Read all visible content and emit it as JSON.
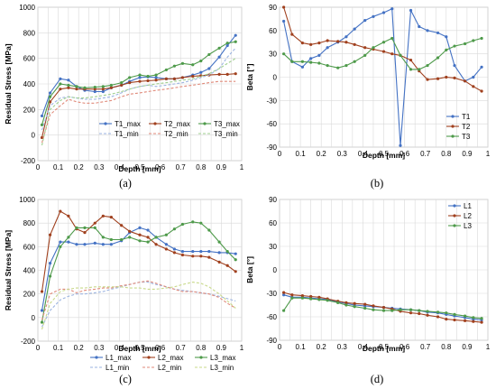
{
  "chart_data": [
    {
      "type": "line",
      "panel_caption": "(a)",
      "xlabel": "Depth [mm]",
      "ylabel": "Residual Stress [MPa]",
      "xlim": [
        0,
        1
      ],
      "ylim": [
        -200,
        1000
      ],
      "xticks": [
        "0",
        "0.1",
        "0.2",
        "0.3",
        "0.4",
        "0.5",
        "0.6",
        "0.7",
        "0.8",
        "0.9",
        "1"
      ],
      "yticks": [
        "-200",
        "0",
        "200",
        "400",
        "600",
        "800",
        "1000"
      ],
      "grid": true,
      "legend_position": "inside-bottom-right",
      "series": [
        {
          "name": "T1_max",
          "style": "solid",
          "color": "#4472c4",
          "x": [
            0.02,
            0.06,
            0.11,
            0.15,
            0.19,
            0.23,
            0.28,
            0.32,
            0.36,
            0.41,
            0.45,
            0.5,
            0.54,
            0.58,
            0.63,
            0.67,
            0.71,
            0.76,
            0.8,
            0.84,
            0.89,
            0.93,
            0.97
          ],
          "y": [
            150,
            330,
            440,
            430,
            380,
            350,
            340,
            340,
            370,
            390,
            420,
            450,
            455,
            450,
            440,
            440,
            450,
            470,
            490,
            520,
            610,
            700,
            780
          ]
        },
        {
          "name": "T2_max",
          "style": "solid",
          "color": "#a0401e",
          "x": [
            0.02,
            0.06,
            0.11,
            0.15,
            0.19,
            0.23,
            0.28,
            0.32,
            0.36,
            0.41,
            0.45,
            0.5,
            0.54,
            0.58,
            0.63,
            0.67,
            0.71,
            0.76,
            0.8,
            0.84,
            0.89,
            0.93,
            0.97
          ],
          "y": [
            -20,
            260,
            360,
            370,
            360,
            360,
            360,
            360,
            370,
            390,
            410,
            420,
            425,
            430,
            440,
            440,
            450,
            460,
            465,
            470,
            475,
            475,
            480
          ]
        },
        {
          "name": "T3_max",
          "style": "solid",
          "color": "#4e9a4a",
          "x": [
            0.02,
            0.06,
            0.11,
            0.15,
            0.19,
            0.23,
            0.28,
            0.32,
            0.36,
            0.41,
            0.45,
            0.5,
            0.54,
            0.58,
            0.63,
            0.67,
            0.71,
            0.76,
            0.8,
            0.84,
            0.89,
            0.93,
            0.97
          ],
          "y": [
            80,
            300,
            400,
            390,
            380,
            370,
            375,
            380,
            390,
            410,
            450,
            470,
            460,
            470,
            510,
            540,
            560,
            550,
            580,
            630,
            680,
            720,
            730
          ]
        },
        {
          "name": "T1_min",
          "style": "dashed",
          "color": "#9bb3e0",
          "x": [
            0.02,
            0.06,
            0.11,
            0.15,
            0.19,
            0.23,
            0.28,
            0.32,
            0.36,
            0.41,
            0.45,
            0.5,
            0.54,
            0.58,
            0.63,
            0.67,
            0.71,
            0.76,
            0.8,
            0.84,
            0.89,
            0.93,
            0.97
          ],
          "y": [
            40,
            230,
            290,
            300,
            290,
            280,
            280,
            290,
            300,
            330,
            360,
            380,
            390,
            380,
            390,
            400,
            410,
            430,
            450,
            470,
            520,
            610,
            680
          ]
        },
        {
          "name": "T2_min",
          "style": "dashed",
          "color": "#e08a7a",
          "x": [
            0.02,
            0.06,
            0.11,
            0.15,
            0.19,
            0.23,
            0.28,
            0.32,
            0.36,
            0.41,
            0.45,
            0.5,
            0.54,
            0.58,
            0.63,
            0.67,
            0.71,
            0.76,
            0.8,
            0.84,
            0.89,
            0.93,
            0.97
          ],
          "y": [
            -60,
            160,
            230,
            280,
            260,
            250,
            250,
            260,
            270,
            300,
            320,
            330,
            340,
            350,
            360,
            370,
            380,
            390,
            400,
            410,
            420,
            420,
            420
          ]
        },
        {
          "name": "T3_min",
          "style": "dashed",
          "color": "#9fcf8f",
          "x": [
            0.02,
            0.06,
            0.11,
            0.15,
            0.19,
            0.23,
            0.28,
            0.32,
            0.36,
            0.41,
            0.45,
            0.5,
            0.54,
            0.58,
            0.63,
            0.67,
            0.71,
            0.76,
            0.8,
            0.84,
            0.89,
            0.93,
            0.97
          ],
          "y": [
            -80,
            200,
            270,
            300,
            290,
            290,
            300,
            310,
            320,
            340,
            360,
            380,
            390,
            400,
            410,
            420,
            430,
            440,
            460,
            480,
            520,
            560,
            600
          ]
        }
      ]
    },
    {
      "type": "line",
      "panel_caption": "(b)",
      "xlabel": "Depth [mm]",
      "ylabel": "Beta [°]",
      "xlim": [
        0,
        1
      ],
      "ylim": [
        -90,
        90
      ],
      "xticks": [
        "0",
        "0.1",
        "0.2",
        "0.3",
        "0.4",
        "0.5",
        "0.6",
        "0.7",
        "0.8",
        "0.9",
        "1"
      ],
      "yticks": [
        "-90",
        "-60",
        "-30",
        "0",
        "30",
        "60",
        "90"
      ],
      "grid": true,
      "legend_position": "inside-bottom-right",
      "series": [
        {
          "name": "T1",
          "style": "solid",
          "color": "#4472c4",
          "x": [
            0.02,
            0.06,
            0.11,
            0.15,
            0.19,
            0.23,
            0.28,
            0.32,
            0.36,
            0.41,
            0.45,
            0.5,
            0.54,
            0.58,
            0.63,
            0.67,
            0.71,
            0.76,
            0.8,
            0.84,
            0.89,
            0.93,
            0.97
          ],
          "y": [
            72,
            20,
            13,
            24,
            28,
            38,
            45,
            52,
            62,
            73,
            78,
            83,
            88,
            -88,
            86,
            65,
            60,
            57,
            52,
            15,
            -5,
            0,
            13
          ]
        },
        {
          "name": "T2",
          "style": "solid",
          "color": "#a0401e",
          "x": [
            0.02,
            0.06,
            0.11,
            0.15,
            0.19,
            0.23,
            0.28,
            0.32,
            0.36,
            0.41,
            0.45,
            0.5,
            0.54,
            0.58,
            0.63,
            0.67,
            0.71,
            0.76,
            0.8,
            0.84,
            0.89,
            0.93,
            0.97
          ],
          "y": [
            90,
            55,
            44,
            42,
            44,
            47,
            46,
            45,
            42,
            38,
            36,
            33,
            30,
            28,
            22,
            8,
            -3,
            -2,
            0,
            -1,
            -5,
            -12,
            -18
          ]
        },
        {
          "name": "T3",
          "style": "solid",
          "color": "#4e9a4a",
          "x": [
            0.02,
            0.06,
            0.11,
            0.15,
            0.19,
            0.23,
            0.28,
            0.32,
            0.36,
            0.41,
            0.45,
            0.5,
            0.54,
            0.58,
            0.63,
            0.67,
            0.71,
            0.76,
            0.8,
            0.84,
            0.89,
            0.93,
            0.97
          ],
          "y": [
            30,
            20,
            20,
            19,
            18,
            15,
            12,
            15,
            20,
            28,
            38,
            45,
            50,
            28,
            10,
            10,
            15,
            25,
            35,
            40,
            43,
            47,
            50
          ]
        }
      ]
    },
    {
      "type": "line",
      "panel_caption": "(c)",
      "xlabel": "Depth [mm]",
      "ylabel": "Residual Stress [MPa]",
      "xlim": [
        0,
        1
      ],
      "ylim": [
        -200,
        1000
      ],
      "xticks": [
        "0",
        "0.1",
        "0.2",
        "0.3",
        "0.4",
        "0.5",
        "0.6",
        "0.7",
        "0.8",
        "0.9",
        "1"
      ],
      "yticks": [
        "-200",
        "0",
        "200",
        "400",
        "600",
        "800",
        "1000"
      ],
      "grid": true,
      "legend_position": "below-plot",
      "series": [
        {
          "name": "L1_max",
          "style": "solid",
          "color": "#4472c4",
          "x": [
            0.02,
            0.06,
            0.11,
            0.15,
            0.19,
            0.23,
            0.28,
            0.32,
            0.36,
            0.41,
            0.45,
            0.5,
            0.54,
            0.58,
            0.63,
            0.67,
            0.71,
            0.76,
            0.8,
            0.84,
            0.89,
            0.93,
            0.97
          ],
          "y": [
            60,
            460,
            640,
            640,
            620,
            620,
            630,
            620,
            620,
            650,
            720,
            760,
            740,
            680,
            620,
            580,
            560,
            560,
            560,
            560,
            550,
            550,
            540
          ]
        },
        {
          "name": "L2_max",
          "style": "solid",
          "color": "#a0401e",
          "x": [
            0.02,
            0.06,
            0.11,
            0.15,
            0.19,
            0.23,
            0.28,
            0.32,
            0.36,
            0.41,
            0.45,
            0.5,
            0.54,
            0.58,
            0.63,
            0.67,
            0.71,
            0.76,
            0.8,
            0.84,
            0.89,
            0.93,
            0.97
          ],
          "y": [
            220,
            700,
            900,
            860,
            750,
            720,
            800,
            860,
            850,
            780,
            730,
            700,
            680,
            620,
            580,
            550,
            530,
            520,
            520,
            510,
            470,
            440,
            390
          ]
        },
        {
          "name": "L3_max",
          "style": "solid",
          "color": "#4e9a4a",
          "x": [
            0.02,
            0.06,
            0.11,
            0.15,
            0.19,
            0.23,
            0.28,
            0.32,
            0.36,
            0.41,
            0.45,
            0.5,
            0.54,
            0.58,
            0.63,
            0.67,
            0.71,
            0.76,
            0.8,
            0.84,
            0.89,
            0.93,
            0.97
          ],
          "y": [
            -40,
            350,
            600,
            680,
            760,
            760,
            760,
            680,
            660,
            660,
            680,
            650,
            640,
            680,
            700,
            750,
            790,
            810,
            800,
            740,
            640,
            560,
            490
          ]
        },
        {
          "name": "L1_min",
          "style": "dashed",
          "color": "#9bb3e0",
          "x": [
            0.02,
            0.06,
            0.11,
            0.15,
            0.19,
            0.23,
            0.28,
            0.32,
            0.36,
            0.41,
            0.45,
            0.5,
            0.54,
            0.58,
            0.63,
            0.67,
            0.71,
            0.76,
            0.8,
            0.84,
            0.89,
            0.93,
            0.97
          ],
          "y": [
            -80,
            60,
            150,
            180,
            200,
            200,
            210,
            220,
            240,
            260,
            280,
            300,
            300,
            280,
            260,
            240,
            230,
            220,
            210,
            200,
            180,
            160,
            140
          ]
        },
        {
          "name": "L2_min",
          "style": "dashed",
          "color": "#e08a7a",
          "x": [
            0.02,
            0.06,
            0.11,
            0.15,
            0.19,
            0.23,
            0.28,
            0.32,
            0.36,
            0.41,
            0.45,
            0.5,
            0.54,
            0.58,
            0.63,
            0.67,
            0.71,
            0.76,
            0.8,
            0.84,
            0.89,
            0.93,
            0.97
          ],
          "y": [
            -20,
            200,
            240,
            240,
            210,
            230,
            240,
            250,
            250,
            270,
            280,
            300,
            310,
            290,
            260,
            240,
            220,
            220,
            210,
            200,
            170,
            120,
            80
          ]
        },
        {
          "name": "L3_min",
          "style": "dashed",
          "color": "#c8d98a",
          "x": [
            0.02,
            0.06,
            0.11,
            0.15,
            0.19,
            0.23,
            0.28,
            0.32,
            0.36,
            0.41,
            0.45,
            0.5,
            0.54,
            0.58,
            0.63,
            0.67,
            0.71,
            0.76,
            0.8,
            0.84,
            0.89,
            0.93,
            0.97
          ],
          "y": [
            -100,
            120,
            220,
            240,
            250,
            250,
            260,
            260,
            260,
            260,
            250,
            250,
            240,
            240,
            250,
            260,
            280,
            300,
            290,
            260,
            200,
            140,
            80
          ]
        }
      ]
    },
    {
      "type": "line",
      "panel_caption": "(d)",
      "xlabel": "Depth [mm]",
      "ylabel": "Beta [°]",
      "xlim": [
        0,
        1
      ],
      "ylim": [
        -90,
        90
      ],
      "xticks": [
        "0",
        "0.1",
        "0.2",
        "0.3",
        "0.4",
        "0.5",
        "0.6",
        "0.7",
        "0.8",
        "0.9",
        "1"
      ],
      "yticks": [
        "-90",
        "-60",
        "-30",
        "0",
        "30",
        "60",
        "90"
      ],
      "grid": true,
      "legend_position": "inside-top-right",
      "series": [
        {
          "name": "L1",
          "style": "solid",
          "color": "#4472c4",
          "x": [
            0.02,
            0.06,
            0.11,
            0.15,
            0.19,
            0.23,
            0.28,
            0.32,
            0.36,
            0.41,
            0.45,
            0.5,
            0.54,
            0.58,
            0.63,
            0.67,
            0.71,
            0.76,
            0.8,
            0.84,
            0.89,
            0.93,
            0.97
          ],
          "y": [
            -32,
            -35,
            -35,
            -36,
            -37,
            -38,
            -41,
            -43,
            -45,
            -46,
            -47,
            -48,
            -49,
            -50,
            -51,
            -52,
            -54,
            -55,
            -57,
            -59,
            -61,
            -63,
            -64
          ]
        },
        {
          "name": "L2",
          "style": "solid",
          "color": "#a0401e",
          "x": [
            0.02,
            0.06,
            0.11,
            0.15,
            0.19,
            0.23,
            0.28,
            0.32,
            0.36,
            0.41,
            0.45,
            0.5,
            0.54,
            0.58,
            0.63,
            0.67,
            0.71,
            0.76,
            0.8,
            0.84,
            0.89,
            0.93,
            0.97
          ],
          "y": [
            -29,
            -32,
            -33,
            -34,
            -35,
            -37,
            -40,
            -42,
            -43,
            -44,
            -46,
            -48,
            -50,
            -53,
            -55,
            -56,
            -58,
            -60,
            -63,
            -64,
            -65,
            -66,
            -67
          ]
        },
        {
          "name": "L3",
          "style": "solid",
          "color": "#4e9a4a",
          "x": [
            0.02,
            0.06,
            0.11,
            0.15,
            0.19,
            0.23,
            0.28,
            0.32,
            0.36,
            0.41,
            0.45,
            0.5,
            0.54,
            0.58,
            0.63,
            0.67,
            0.71,
            0.76,
            0.8,
            0.84,
            0.89,
            0.93,
            0.97
          ],
          "y": [
            -52,
            -36,
            -36,
            -37,
            -38,
            -39,
            -42,
            -45,
            -47,
            -49,
            -51,
            -52,
            -52,
            -51,
            -51,
            -52,
            -53,
            -54,
            -55,
            -57,
            -59,
            -61,
            -62
          ]
        }
      ]
    }
  ]
}
